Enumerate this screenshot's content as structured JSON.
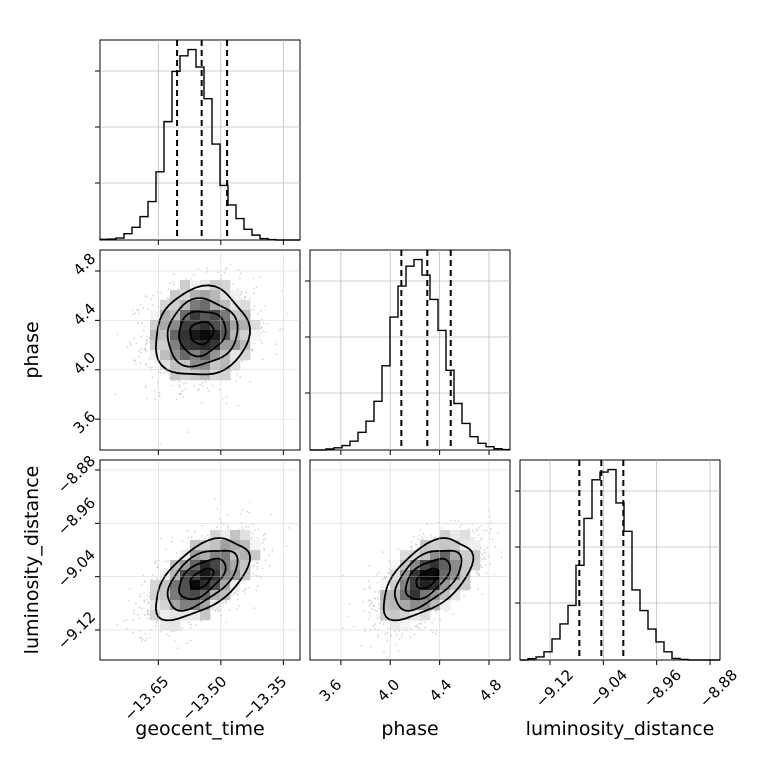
{
  "chart_data": {
    "type": "corner",
    "parameters": [
      "geocent_time",
      "phase",
      "luminosity_distance"
    ],
    "ticks": {
      "geocent_time": [
        -13.65,
        -13.5,
        -13.35
      ],
      "phase": [
        3.6,
        4.0,
        4.4,
        4.8
      ],
      "luminosity_distance": [
        -9.12,
        -9.04,
        -8.96,
        -8.88
      ]
    },
    "tick_labels": {
      "geocent_time": [
        "−13.65",
        "−13.50",
        "−13.35"
      ],
      "phase": [
        "3.6",
        "4.0",
        "4.4",
        "4.8"
      ],
      "luminosity_distance": [
        "−9.12",
        "−9.04",
        "−8.96",
        "−8.88"
      ]
    },
    "ranges": {
      "geocent_time": [
        -13.79,
        -13.31
      ],
      "phase": [
        3.35,
        4.97
      ],
      "luminosity_distance": [
        -9.165,
        -8.865
      ]
    },
    "histograms": {
      "geocent_time": {
        "range": [
          -13.79,
          -13.31
        ],
        "values": [
          0.3,
          0.4,
          0.8,
          2.6,
          5.2,
          9.6,
          15.8,
          28.0,
          48.6,
          69.2,
          75.6,
          78.2,
          71.0,
          58.0,
          39.4,
          22.4,
          14.4,
          8.8,
          4.4,
          2.0,
          0.6,
          0.2,
          0,
          0,
          0
        ]
      },
      "phase": {
        "range": [
          3.35,
          4.97
        ],
        "values": [
          0,
          0,
          0.5,
          1.0,
          2.0,
          4.0,
          8.0,
          13.0,
          22.0,
          38.0,
          60.0,
          74.0,
          83.0,
          86.0,
          79.0,
          68.0,
          54.0,
          36.0,
          21.0,
          12.0,
          6.0,
          3.0,
          1.5,
          0.6,
          0.2
        ]
      },
      "luminosity_distance": {
        "range": [
          -9.165,
          -8.865
        ],
        "values": [
          0,
          0.5,
          1.2,
          3.2,
          8.2,
          14.0,
          21.2,
          36.8,
          55.0,
          70.0,
          73.0,
          74.0,
          61.0,
          50.0,
          27.2,
          19.2,
          12.0,
          7.0,
          3.2,
          0.6,
          0.2,
          0,
          0,
          0,
          0
        ]
      }
    },
    "quantiles": {
      "geocent_time": [
        -13.605,
        -13.546,
        -13.485
      ],
      "phase": [
        4.09,
        4.3,
        4.49
      ],
      "luminosity_distance": [
        -9.076,
        -9.043,
        -9.01
      ]
    },
    "pair_statistics": {
      "phase|geocent_time": {
        "x_mean": -13.546,
        "y_mean": 4.3,
        "x_sd": 0.056,
        "y_sd": 0.18,
        "correlation": 0.1
      },
      "luminosity_distance|geocent_time": {
        "x_mean": -13.546,
        "y_mean": -9.043,
        "x_sd": 0.056,
        "y_sd": 0.03,
        "correlation": 0.55
      },
      "luminosity_distance|phase": {
        "x_mean": 4.3,
        "y_mean": -9.043,
        "x_sd": 0.18,
        "y_sd": 0.03,
        "correlation": 0.55
      }
    },
    "grid": true,
    "color": "#000000",
    "scatter_color": "#b4b4b4"
  }
}
